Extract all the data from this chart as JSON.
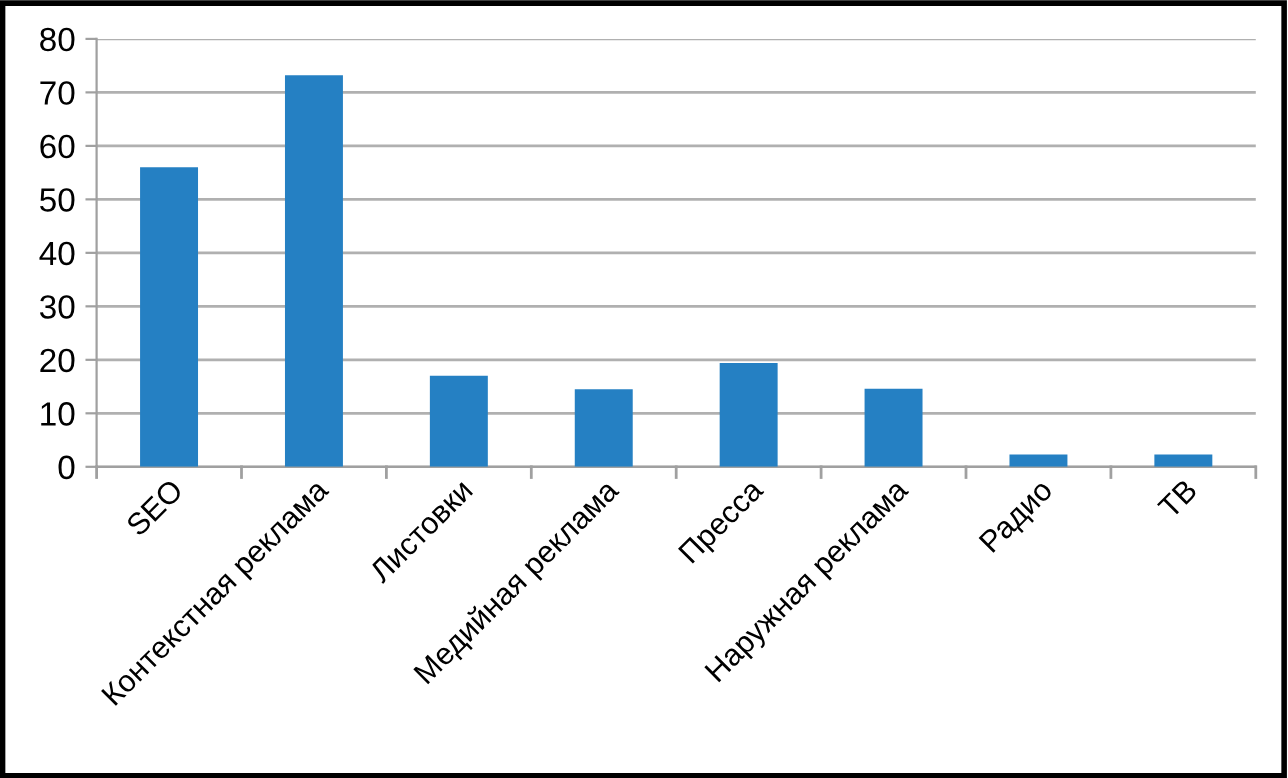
{
  "chart_data": {
    "type": "bar",
    "categories": [
      "SEO",
      "Контекстная реклама",
      "Листовки",
      "Медийная реклама",
      "Пресса",
      "Наружная реклама",
      "Радио",
      "ТВ"
    ],
    "values": [
      56,
      73.2,
      17,
      14.5,
      19.4,
      14.6,
      2.3,
      2.3
    ],
    "color": "#2580c3",
    "ylim": [
      0,
      80
    ],
    "yticks": [
      0,
      10,
      20,
      30,
      40,
      50,
      60,
      70,
      80
    ],
    "grid": "y",
    "legend": false
  }
}
